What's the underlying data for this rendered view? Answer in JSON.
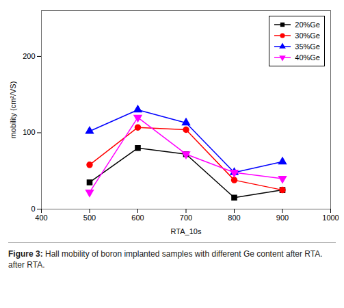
{
  "chart_data": {
    "type": "line",
    "x": [
      500,
      600,
      700,
      800,
      900
    ],
    "series": [
      {
        "name": "20%Ge",
        "color": "#000000",
        "marker": "square",
        "values": [
          35,
          80,
          72,
          15,
          25
        ]
      },
      {
        "name": "30%Ge",
        "color": "#ff0000",
        "marker": "circle",
        "values": [
          58,
          107,
          104,
          38,
          25
        ]
      },
      {
        "name": "35%Ge",
        "color": "#0000ff",
        "marker": "triangle-up",
        "values": [
          102,
          130,
          113,
          48,
          62
        ]
      },
      {
        "name": "40%Ge",
        "color": "#ff00ff",
        "marker": "triangle-down",
        "values": [
          22,
          120,
          72,
          48,
          40
        ]
      }
    ],
    "xlabel": "RTA_10s",
    "ylabel": "mobility (cm²/VS)",
    "xlim": [
      400,
      1000
    ],
    "ylim": [
      0,
      260
    ],
    "xticks": [
      400,
      500,
      600,
      700,
      800,
      900,
      1000
    ],
    "yticks": [
      0,
      100,
      200
    ],
    "grid": false,
    "legend": "upper right",
    "caption": [
      "Figure 3:",
      "Hall mobility of boron implanted samples with different Ge content after RTA.",
      "after RTA."
    ]
  }
}
